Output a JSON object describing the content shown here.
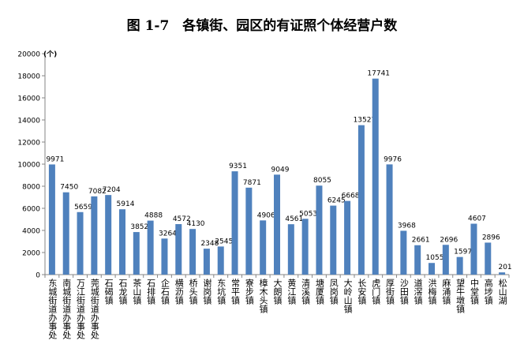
{
  "chart_data": {
    "type": "bar",
    "title": "图 1-7　各镇街、园区的有证照个体经营户数",
    "ylabel": "(个)",
    "xlabel": "",
    "ylim": [
      0,
      20000
    ],
    "yticks": [
      0,
      2000,
      4000,
      6000,
      8000,
      10000,
      12000,
      14000,
      16000,
      18000,
      20000
    ],
    "grid": false,
    "bar_color": "#4f81bd",
    "categories": [
      "东城街道办事处",
      "南城街道办事处",
      "万江街道办事处",
      "莞城街道办事处",
      "石碣镇",
      "石龙镇",
      "茶山镇",
      "石排镇",
      "企石镇",
      "横沥镇",
      "桥头镇",
      "谢岗镇",
      "东坑镇",
      "常平镇",
      "寮步镇",
      "樟木头镇",
      "大朗镇",
      "黄江镇",
      "清溪镇",
      "塘厦镇",
      "凤岗镇",
      "大岭山镇",
      "长安镇",
      "虎门镇",
      "厚街镇",
      "沙田镇",
      "道滘镇",
      "洪梅镇",
      "麻涌镇",
      "望牛墩镇",
      "中堂镇",
      "高埗镇",
      "松山湖"
    ],
    "values": [
      9971,
      7450,
      5659,
      7082,
      7204,
      5914,
      3852,
      4888,
      3264,
      4572,
      4130,
      2348,
      2545,
      9351,
      7871,
      4906,
      9049,
      4561,
      5053,
      8055,
      6245,
      6668,
      13527,
      17741,
      9976,
      3968,
      2661,
      1055,
      2696,
      1597,
      4607,
      2896,
      201
    ]
  }
}
